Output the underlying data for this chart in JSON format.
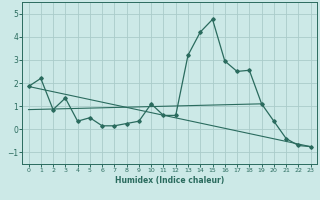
{
  "title": "",
  "xlabel": "Humidex (Indice chaleur)",
  "bg_color": "#cce9e7",
  "grid_color": "#aaccca",
  "line_color": "#2a6b5e",
  "xlim": [
    -0.5,
    23.5
  ],
  "ylim": [
    -1.5,
    5.5
  ],
  "yticks": [
    -1,
    0,
    1,
    2,
    3,
    4,
    5
  ],
  "xticks": [
    0,
    1,
    2,
    3,
    4,
    5,
    6,
    7,
    8,
    9,
    10,
    11,
    12,
    13,
    14,
    15,
    16,
    17,
    18,
    19,
    20,
    21,
    22,
    23
  ],
  "series": [
    [
      0,
      1.85
    ],
    [
      1,
      2.2
    ],
    [
      2,
      0.85
    ],
    [
      3,
      1.35
    ],
    [
      4,
      0.35
    ],
    [
      5,
      0.5
    ],
    [
      6,
      0.15
    ],
    [
      7,
      0.15
    ],
    [
      8,
      0.25
    ],
    [
      9,
      0.35
    ],
    [
      10,
      1.1
    ],
    [
      11,
      0.6
    ],
    [
      12,
      0.6
    ],
    [
      13,
      3.2
    ],
    [
      14,
      4.2
    ],
    [
      15,
      4.75
    ],
    [
      16,
      2.95
    ],
    [
      17,
      2.5
    ],
    [
      18,
      2.55
    ],
    [
      19,
      1.1
    ],
    [
      20,
      0.35
    ],
    [
      21,
      -0.4
    ],
    [
      22,
      -0.7
    ],
    [
      23,
      -0.75
    ]
  ],
  "trend_line": [
    [
      0,
      1.85
    ],
    [
      23,
      -0.75
    ]
  ],
  "flat_line": [
    [
      0,
      0.85
    ],
    [
      19,
      1.1
    ]
  ]
}
